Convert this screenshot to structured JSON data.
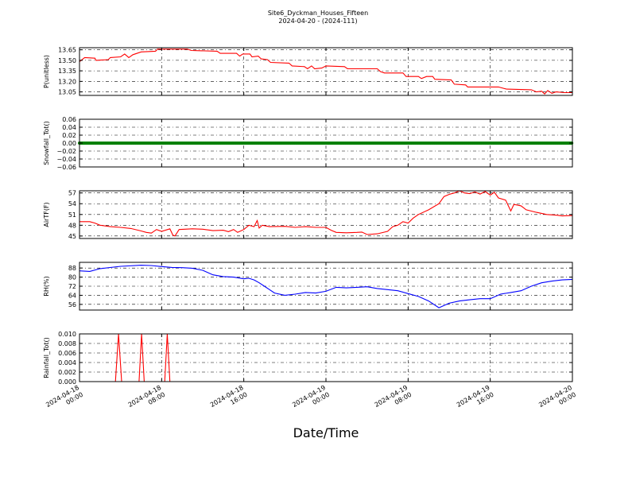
{
  "header": {
    "title": "Site6_Dyckman_Houses_Fifteen",
    "subtitle": "2024-04-20 - (2024-111)"
  },
  "xaxis": {
    "label": "Date/Time",
    "range_hours": [
      0,
      48
    ],
    "ticks": [
      {
        "hour": 0,
        "line1": "2024-04-18",
        "line2": "00:00"
      },
      {
        "hour": 8,
        "line1": "2024-04-18",
        "line2": "08:00"
      },
      {
        "hour": 16,
        "line1": "2024-04-18",
        "line2": "16:00"
      },
      {
        "hour": 24,
        "line1": "2024-04-19",
        "line2": "00:00"
      },
      {
        "hour": 32,
        "line1": "2024-04-19",
        "line2": "08:00"
      },
      {
        "hour": 40,
        "line1": "2024-04-19",
        "line2": "16:00"
      },
      {
        "hour": 48,
        "line1": "2024-04-20",
        "line2": "00:00"
      }
    ]
  },
  "chart_data": [
    {
      "type": "line",
      "ylabel": "P(unitless)",
      "ylim": [
        13.0,
        13.68
      ],
      "yticks": [
        13.05,
        13.2,
        13.35,
        13.5,
        13.65
      ],
      "ytick_labels": [
        "13.05",
        "13.20",
        "13.35",
        "13.50",
        "13.65"
      ],
      "grid": true,
      "color": "#ff0000",
      "points": [
        [
          0,
          13.48
        ],
        [
          0.5,
          13.54
        ],
        [
          1.5,
          13.53
        ],
        [
          1.6,
          13.5
        ],
        [
          2.8,
          13.51
        ],
        [
          3.0,
          13.54
        ],
        [
          4.0,
          13.55
        ],
        [
          4.4,
          13.59
        ],
        [
          4.8,
          13.54
        ],
        [
          5.2,
          13.58
        ],
        [
          6.0,
          13.62
        ],
        [
          7.4,
          13.63
        ],
        [
          7.6,
          13.66
        ],
        [
          10.5,
          13.66
        ],
        [
          10.9,
          13.64
        ],
        [
          13.4,
          13.63
        ],
        [
          13.7,
          13.6
        ],
        [
          15.3,
          13.6
        ],
        [
          15.6,
          13.56
        ],
        [
          15.9,
          13.59
        ],
        [
          16.6,
          13.59
        ],
        [
          16.8,
          13.55
        ],
        [
          17.4,
          13.56
        ],
        [
          17.7,
          13.52
        ],
        [
          18.3,
          13.51
        ],
        [
          18.6,
          13.47
        ],
        [
          20.4,
          13.46
        ],
        [
          20.7,
          13.42
        ],
        [
          21.9,
          13.41
        ],
        [
          22.2,
          13.38
        ],
        [
          22.6,
          13.42
        ],
        [
          22.9,
          13.38
        ],
        [
          23.6,
          13.39
        ],
        [
          24.0,
          13.42
        ],
        [
          25.8,
          13.41
        ],
        [
          26.1,
          13.38
        ],
        [
          29.0,
          13.38
        ],
        [
          29.3,
          13.34
        ],
        [
          29.7,
          13.32
        ],
        [
          31.5,
          13.32
        ],
        [
          31.8,
          13.27
        ],
        [
          33.0,
          13.27
        ],
        [
          33.3,
          13.24
        ],
        [
          33.8,
          13.27
        ],
        [
          34.4,
          13.27
        ],
        [
          34.6,
          13.23
        ],
        [
          36.2,
          13.22
        ],
        [
          36.5,
          13.16
        ],
        [
          37.6,
          13.15
        ],
        [
          37.8,
          13.12
        ],
        [
          40.8,
          13.12
        ],
        [
          41.6,
          13.09
        ],
        [
          44.0,
          13.08
        ],
        [
          44.5,
          13.05
        ],
        [
          45.0,
          13.06
        ],
        [
          45.3,
          13.02
        ],
        [
          45.6,
          13.07
        ],
        [
          46.0,
          13.03
        ],
        [
          46.4,
          13.05
        ],
        [
          47.2,
          13.04
        ],
        [
          48,
          13.04
        ]
      ]
    },
    {
      "type": "scatter",
      "ylabel": "Snowfall_Tot()",
      "ylim": [
        -0.06,
        0.06
      ],
      "yticks": [
        -0.06,
        -0.04,
        -0.02,
        0.0,
        0.02,
        0.04,
        0.06
      ],
      "ytick_labels": [
        "−0.06",
        "−0.04",
        "−0.02",
        "0.00",
        "0.02",
        "0.04",
        "0.06"
      ],
      "grid": true,
      "color": "#008000",
      "constant_value": 0.0
    },
    {
      "type": "line",
      "ylabel": "AirTF(F)",
      "ylim": [
        44.3,
        57.6
      ],
      "yticks": [
        45,
        48,
        51,
        54,
        57
      ],
      "ytick_labels": [
        "45",
        "48",
        "51",
        "54",
        "57"
      ],
      "grid": true,
      "color": "#ff0000",
      "points": [
        [
          0,
          49.0
        ],
        [
          1.0,
          49.0
        ],
        [
          1.5,
          48.6
        ],
        [
          2.0,
          48.0
        ],
        [
          3.0,
          47.6
        ],
        [
          4.0,
          47.4
        ],
        [
          5.0,
          47.1
        ],
        [
          6.0,
          46.4
        ],
        [
          6.5,
          46.0
        ],
        [
          7.0,
          45.8
        ],
        [
          7.5,
          46.8
        ],
        [
          8.0,
          46.3
        ],
        [
          8.8,
          47.0
        ],
        [
          9.1,
          45.2
        ],
        [
          9.3,
          45.0
        ],
        [
          9.7,
          46.8
        ],
        [
          11.0,
          47.0
        ],
        [
          12.0,
          46.9
        ],
        [
          13.0,
          46.5
        ],
        [
          14.0,
          46.6
        ],
        [
          14.5,
          46.2
        ],
        [
          15.0,
          46.8
        ],
        [
          15.4,
          46.0
        ],
        [
          16.0,
          46.8
        ],
        [
          16.5,
          48.0
        ],
        [
          17.0,
          47.6
        ],
        [
          17.3,
          49.3
        ],
        [
          17.5,
          47.2
        ],
        [
          17.8,
          48.0
        ],
        [
          18.5,
          47.6
        ],
        [
          20.0,
          47.7
        ],
        [
          21.0,
          47.4
        ],
        [
          22.0,
          47.6
        ],
        [
          23.0,
          47.4
        ],
        [
          24.0,
          47.4
        ],
        [
          24.5,
          46.6
        ],
        [
          25.0,
          46.0
        ],
        [
          26.0,
          45.9
        ],
        [
          27.0,
          46.0
        ],
        [
          27.5,
          46.1
        ],
        [
          28.0,
          45.4
        ],
        [
          29.0,
          45.6
        ],
        [
          30.0,
          46.3
        ],
        [
          30.5,
          47.6
        ],
        [
          31.0,
          48.0
        ],
        [
          31.5,
          49.0
        ],
        [
          32.0,
          48.6
        ],
        [
          32.5,
          50.0
        ],
        [
          33.0,
          51.0
        ],
        [
          34.0,
          52.3
        ],
        [
          35.0,
          54.0
        ],
        [
          35.5,
          56.0
        ],
        [
          36.0,
          56.6
        ],
        [
          36.5,
          57.0
        ],
        [
          37.0,
          57.6
        ],
        [
          37.5,
          57.0
        ],
        [
          38.0,
          56.8
        ],
        [
          38.5,
          57.3
        ],
        [
          39.0,
          56.7
        ],
        [
          39.5,
          57.4
        ],
        [
          40.0,
          56.4
        ],
        [
          40.4,
          57.2
        ],
        [
          40.8,
          55.6
        ],
        [
          41.5,
          55.0
        ],
        [
          42.0,
          52.0
        ],
        [
          42.3,
          53.8
        ],
        [
          43.0,
          53.4
        ],
        [
          43.5,
          52.3
        ],
        [
          44.5,
          51.6
        ],
        [
          45.5,
          51.0
        ],
        [
          46.5,
          50.8
        ],
        [
          47.0,
          50.6
        ],
        [
          48,
          50.7
        ]
      ]
    },
    {
      "type": "line",
      "ylabel": "RH(%)",
      "ylim": [
        51,
        93
      ],
      "yticks": [
        56,
        64,
        72,
        80,
        88
      ],
      "ytick_labels": [
        "56",
        "64",
        "72",
        "80",
        "88"
      ],
      "grid": true,
      "color": "#0000ff",
      "points": [
        [
          0,
          85.5
        ],
        [
          1,
          85.0
        ],
        [
          2,
          87.5
        ],
        [
          4,
          89.5
        ],
        [
          6,
          90.5
        ],
        [
          7,
          90.2
        ],
        [
          8,
          89.3
        ],
        [
          9,
          88.5
        ],
        [
          10,
          88.3
        ],
        [
          11,
          87.8
        ],
        [
          12,
          86.0
        ],
        [
          13,
          82.0
        ],
        [
          14,
          80.5
        ],
        [
          15,
          80.0
        ],
        [
          16,
          78.5
        ],
        [
          16.5,
          79.0
        ],
        [
          17,
          77.5
        ],
        [
          17.5,
          75.0
        ],
        [
          18,
          72.0
        ],
        [
          18.5,
          69.0
        ],
        [
          19,
          66.0
        ],
        [
          20,
          64.0
        ],
        [
          21,
          65.0
        ],
        [
          22,
          66.5
        ],
        [
          23,
          66.0
        ],
        [
          24,
          67.5
        ],
        [
          25,
          71.0
        ],
        [
          26,
          70.5
        ],
        [
          27,
          71.0
        ],
        [
          28,
          71.5
        ],
        [
          29,
          70.0
        ],
        [
          30,
          69.0
        ],
        [
          31,
          68.0
        ],
        [
          32,
          65.5
        ],
        [
          33,
          63.0
        ],
        [
          34,
          59.0
        ],
        [
          35,
          53.0
        ],
        [
          36,
          57.0
        ],
        [
          37,
          59.0
        ],
        [
          38,
          60.0
        ],
        [
          39,
          61.0
        ],
        [
          40,
          61.0
        ],
        [
          41,
          65.0
        ],
        [
          42,
          66.5
        ],
        [
          43,
          68.0
        ],
        [
          44,
          72.0
        ],
        [
          45,
          75.0
        ],
        [
          46,
          76.5
        ],
        [
          47,
          77.5
        ],
        [
          48,
          78.0
        ]
      ]
    },
    {
      "type": "line",
      "ylabel": "Rainfall_Tot()",
      "ylim": [
        0,
        0.01
      ],
      "yticks": [
        0.0,
        0.002,
        0.004,
        0.006,
        0.008,
        0.01
      ],
      "ytick_labels": [
        "0.000",
        "0.002",
        "0.004",
        "0.006",
        "0.008",
        "0.010"
      ],
      "grid": true,
      "color": "#ff0000",
      "points": [
        [
          0,
          0
        ],
        [
          3.5,
          0
        ],
        [
          3.8,
          0.01
        ],
        [
          4.1,
          0
        ],
        [
          5.8,
          0
        ],
        [
          6.05,
          0.01
        ],
        [
          6.3,
          0
        ],
        [
          8.3,
          0
        ],
        [
          8.55,
          0.01
        ],
        [
          8.8,
          0
        ],
        [
          48,
          0
        ]
      ]
    }
  ]
}
